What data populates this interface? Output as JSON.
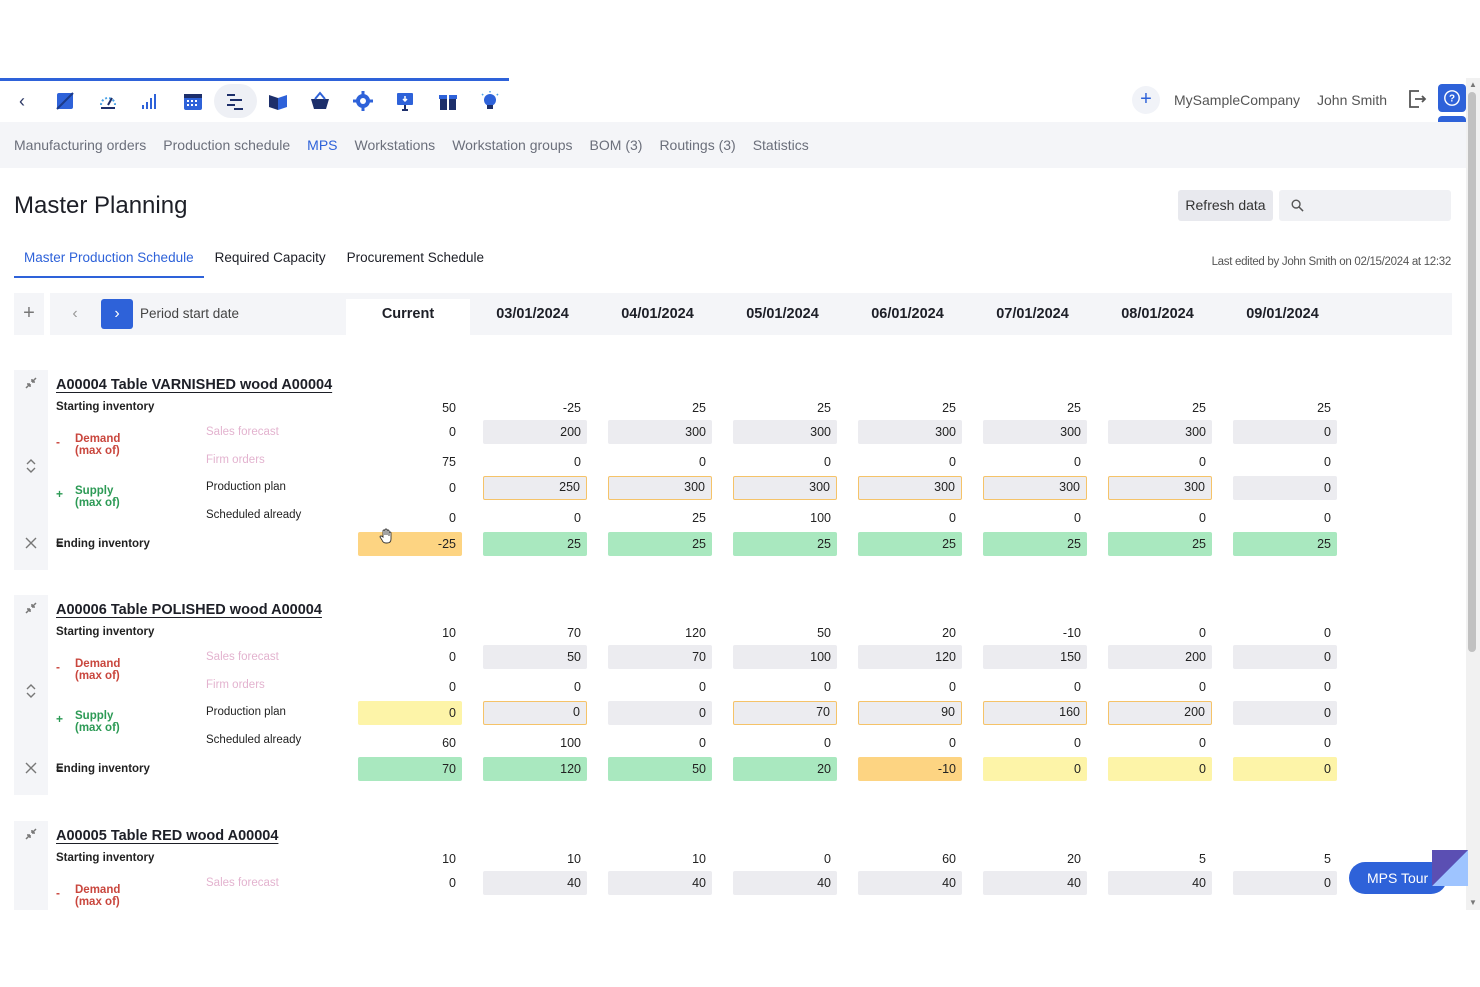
{
  "topbar": {
    "back_icon": "chevron-left-icon",
    "module_icons": [
      "sales-icon",
      "dashboard-icon",
      "analytics-icon",
      "calendar-icon",
      "production-icon",
      "book-icon",
      "basket-icon",
      "settings-icon",
      "presentation-icon",
      "gift-icon",
      "lightbulb-icon"
    ],
    "active_icon_index": 4,
    "company": "MySampleCompany",
    "user": "John Smith"
  },
  "subnav": {
    "tabs": [
      "Manufacturing orders",
      "Production schedule",
      "MPS",
      "Workstations",
      "Workstation groups",
      "BOM (3)",
      "Routings (3)",
      "Statistics"
    ],
    "active": 2
  },
  "page": {
    "title": "Master Planning",
    "refresh_label": "Refresh data",
    "search_placeholder": "",
    "view_tabs": [
      "Master Production Schedule",
      "Required Capacity",
      "Procurement Schedule"
    ],
    "last_edited": "Last edited by John Smith on 02/15/2024 at 12:32"
  },
  "period": {
    "label": "Period start date",
    "current_label": "Current",
    "dates": [
      "03/01/2024",
      "04/01/2024",
      "05/01/2024",
      "06/01/2024",
      "07/01/2024",
      "08/01/2024",
      "09/01/2024"
    ]
  },
  "row_labels": {
    "starting": "Starting inventory",
    "demand": "Demand\n(max of)",
    "supply": "Supply\n(max of)",
    "sales_forecast": "Sales forecast",
    "firm_orders": "Firm orders",
    "production_plan": "Production plan",
    "scheduled_already": "Scheduled already",
    "ending": "Ending inventory",
    "minus": "-",
    "plus": "+",
    "equals": "="
  },
  "products": [
    {
      "title": "A00004 Table VARNISHED wood A00004",
      "starting": [
        "50",
        "-25",
        "25",
        "25",
        "25",
        "25",
        "25",
        "25"
      ],
      "sales_forecast": [
        "0",
        "200",
        "300",
        "300",
        "300",
        "300",
        "300",
        "0"
      ],
      "firm_orders": [
        "75",
        "0",
        "0",
        "0",
        "0",
        "0",
        "0",
        "0"
      ],
      "production_plan": [
        "0",
        "250",
        "300",
        "300",
        "300",
        "300",
        "300",
        "0"
      ],
      "production_plan_style": [
        "none",
        "gray-b",
        "gray-b",
        "gray-b",
        "gray-b",
        "gray-b",
        "gray-b",
        "gray"
      ],
      "scheduled_already": [
        "0",
        "0",
        "25",
        "100",
        "0",
        "0",
        "0",
        "0"
      ],
      "ending": [
        "-25",
        "25",
        "25",
        "25",
        "25",
        "25",
        "25",
        "25"
      ],
      "ending_style": [
        "orange",
        "green",
        "green",
        "green",
        "green",
        "green",
        "green",
        "green"
      ]
    },
    {
      "title": "A00006 Table POLISHED wood A00004",
      "starting": [
        "10",
        "70",
        "120",
        "50",
        "20",
        "-10",
        "0",
        "0"
      ],
      "sales_forecast": [
        "0",
        "50",
        "70",
        "100",
        "120",
        "150",
        "200",
        "0"
      ],
      "firm_orders": [
        "0",
        "0",
        "0",
        "0",
        "0",
        "0",
        "0",
        "0"
      ],
      "production_plan": [
        "0",
        "0",
        "0",
        "70",
        "90",
        "160",
        "200",
        "0"
      ],
      "production_plan_style": [
        "yellow",
        "gray-b",
        "gray",
        "gray-b",
        "gray-b",
        "gray-b",
        "gray-b",
        "gray"
      ],
      "scheduled_already": [
        "60",
        "100",
        "0",
        "0",
        "0",
        "0",
        "0",
        "0"
      ],
      "ending": [
        "70",
        "120",
        "50",
        "20",
        "-10",
        "0",
        "0",
        "0"
      ],
      "ending_style": [
        "green",
        "green",
        "green",
        "green",
        "orange",
        "yellow",
        "yellow",
        "yellow"
      ]
    },
    {
      "title": "A00005 Table RED wood A00004",
      "starting": [
        "10",
        "10",
        "10",
        "0",
        "60",
        "20",
        "5",
        "5"
      ],
      "sales_forecast": [
        "0",
        "40",
        "40",
        "40",
        "40",
        "40",
        "40",
        "0"
      ]
    }
  ],
  "tour": {
    "label": "MPS Tour"
  },
  "colors": {
    "accent": "#2e62d9",
    "demand": "#c9463d",
    "supply": "#2c9a55",
    "green_cell": "#a9e8bf",
    "orange_cell": "#fdd482",
    "yellow_cell": "#fdf4a8"
  }
}
